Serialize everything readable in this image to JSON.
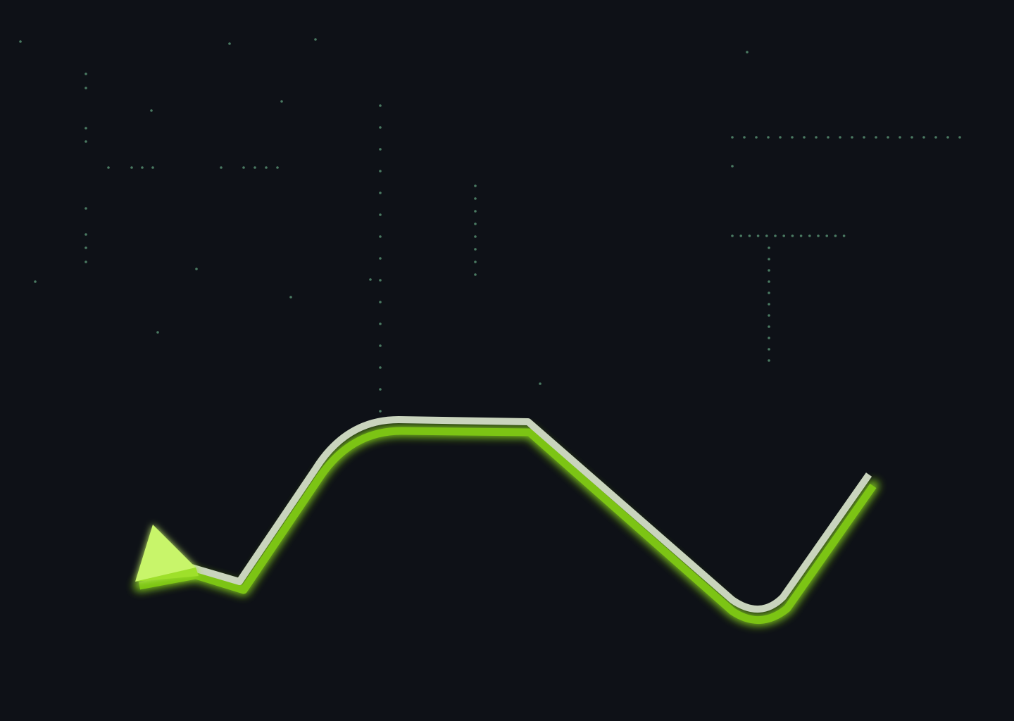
{
  "colors": {
    "background": "#0e1117",
    "dots": "#4a7a62",
    "line_glow": "#86d11a",
    "line_core": "#c9d4bd",
    "arrow_fill": "#c8f56a"
  },
  "icons": {
    "arrowhead": "arrowhead-icon"
  }
}
